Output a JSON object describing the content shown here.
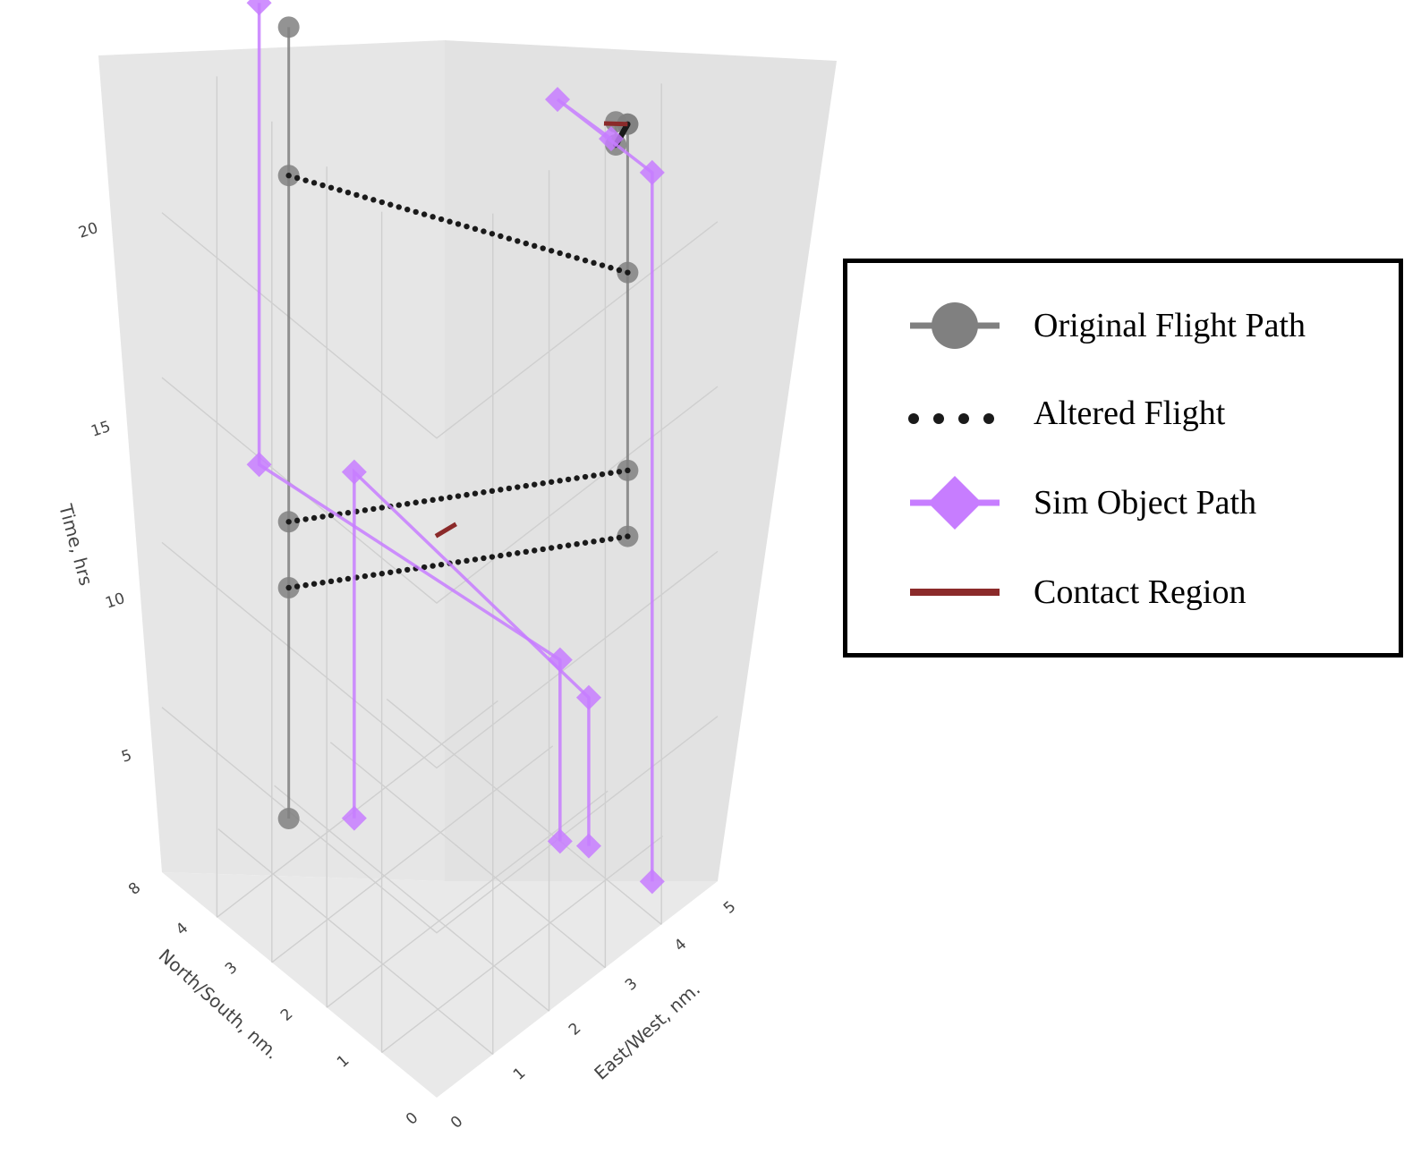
{
  "chart_data": {
    "type": "scatter3d",
    "axes": {
      "x": {
        "label": "East/West, nm.",
        "ticks": [
          "0",
          "1",
          "2",
          "3",
          "4",
          "5"
        ]
      },
      "y": {
        "label": "North/South, nm.",
        "ticks": [
          "0",
          "1",
          "2",
          "3",
          "4",
          "8"
        ]
      },
      "z": {
        "label": "Time, hrs",
        "ticks": [
          "5",
          "10",
          "15",
          "20"
        ]
      }
    },
    "legend": {
      "placement": "right",
      "entries": [
        {
          "name": "Original Flight Path"
        },
        {
          "name": "Altered Flight"
        },
        {
          "name": "Sim Object Path"
        },
        {
          "name": "Contact Region"
        }
      ]
    },
    "colors": {
      "original": "#808080",
      "altered": "#1a1a1a",
      "sim": "#c77dff",
      "contact": "#8b2a2a"
    },
    "series": [
      {
        "type": "original",
        "points": [
          {
            "x": 3.0,
            "y": 5.6,
            "z": 0.5
          },
          {
            "x": 3.0,
            "y": 5.6,
            "z": 7.5
          },
          {
            "x": 3.0,
            "y": 5.6,
            "z": 9.5
          },
          {
            "x": 3.0,
            "y": 5.6,
            "z": 20.0
          },
          {
            "x": 3.0,
            "y": 5.6,
            "z": 24.5
          }
        ]
      },
      {
        "type": "original",
        "points": [
          {
            "x": 8.6,
            "y": 1.5,
            "z": 9.5
          },
          {
            "x": 8.6,
            "y": 1.5,
            "z": 11.5
          },
          {
            "x": 8.6,
            "y": 1.5,
            "z": 17.5
          },
          {
            "x": 8.6,
            "y": 1.5,
            "z": 22.0
          }
        ]
      },
      {
        "type": "original",
        "points": [
          {
            "x": 8.6,
            "y": 1.5,
            "z": 22.0
          },
          {
            "x": 6.2,
            "y": 0.1,
            "z": 24.5
          },
          {
            "x": 6.2,
            "y": 0.1,
            "z": 25.2
          }
        ]
      },
      {
        "type": "altered",
        "segments": [
          {
            "from": {
              "x": 3.0,
              "y": 5.6,
              "z": 20.0
            },
            "to": {
              "x": 8.6,
              "y": 1.5,
              "z": 17.5
            }
          },
          {
            "from": {
              "x": 3.0,
              "y": 5.6,
              "z": 9.5
            },
            "to": {
              "x": 8.6,
              "y": 1.5,
              "z": 11.5
            }
          },
          {
            "from": {
              "x": 3.0,
              "y": 5.6,
              "z": 7.5
            },
            "to": {
              "x": 8.6,
              "y": 1.5,
              "z": 9.5
            }
          },
          {
            "from": {
              "x": 6.2,
              "y": 0.1,
              "z": 24.5
            },
            "to": {
              "x": 8.6,
              "y": 1.5,
              "z": 22.0
            }
          }
        ]
      },
      {
        "type": "sim",
        "points": [
          {
            "x": 4.5,
            "y": 5.1,
            "z": 0.0
          },
          {
            "x": 4.5,
            "y": 5.1,
            "z": 10.5
          },
          {
            "x": 8.0,
            "y": 2.0,
            "z": 4.5
          },
          {
            "x": 8.0,
            "y": 2.0,
            "z": 0.0
          }
        ]
      },
      {
        "type": "sim",
        "points": [
          {
            "x": 3.0,
            "y": 6.3,
            "z": 24.5
          },
          {
            "x": 3.0,
            "y": 6.3,
            "z": 10.5
          },
          {
            "x": 7.6,
            "y": 2.4,
            "z": 5.5
          },
          {
            "x": 7.6,
            "y": 2.4,
            "z": 0.0
          }
        ]
      },
      {
        "type": "sim",
        "points": [
          {
            "x": 8.0,
            "y": 0.5,
            "z": 0.5
          },
          {
            "x": 8.0,
            "y": 0.5,
            "z": 22.0
          },
          {
            "x": 5.8,
            "y": 1.2,
            "z": 25.0
          },
          {
            "x": 5.9,
            "y": 0.0,
            "z": 25.0
          }
        ]
      },
      {
        "type": "contact",
        "segments": [
          {
            "from": {
              "x": 5.4,
              "y": 3.8,
              "z": 9.3
            },
            "to": {
              "x": 5.8,
              "y": 3.6,
              "z": 9.6
            }
          },
          {
            "from": {
              "x": 6.8,
              "y": 0.8,
              "z": 24.0
            },
            "to": {
              "x": 8.6,
              "y": 1.5,
              "z": 22.0
            }
          }
        ]
      }
    ]
  }
}
